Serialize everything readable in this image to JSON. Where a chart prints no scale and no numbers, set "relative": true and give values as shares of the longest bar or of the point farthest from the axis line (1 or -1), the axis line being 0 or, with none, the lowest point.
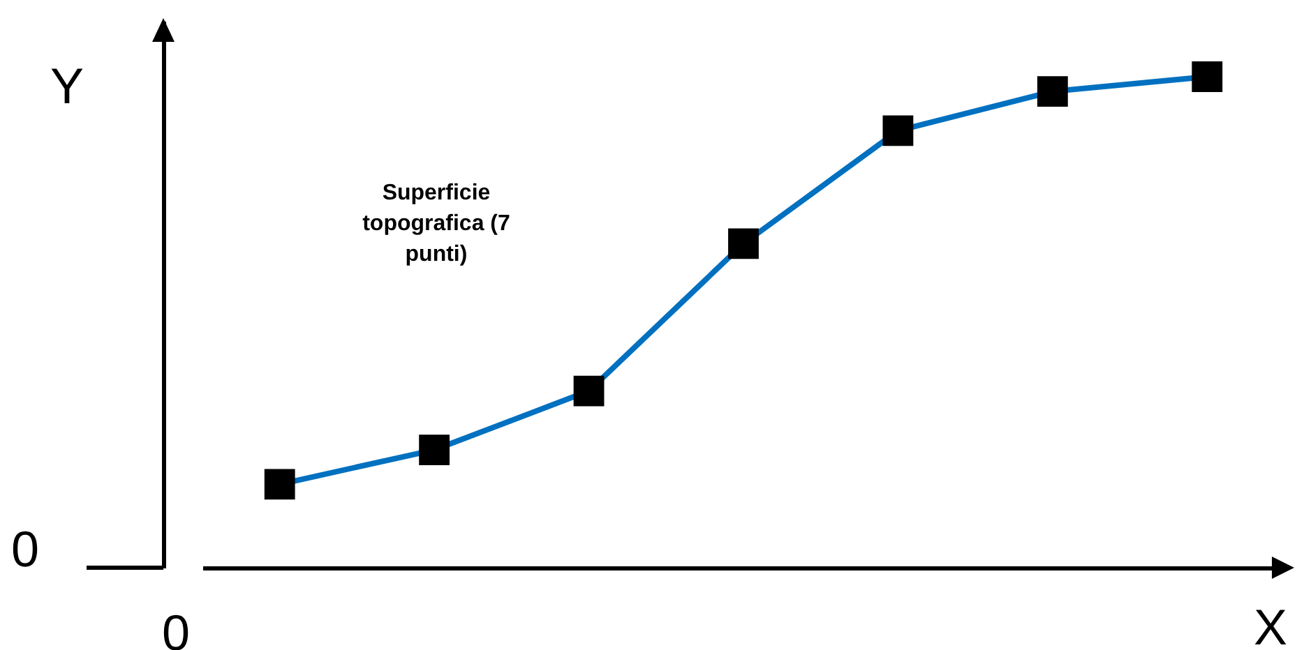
{
  "chart_data": {
    "type": "line",
    "relative": true,
    "xlabel": "X",
    "ylabel": "Y",
    "marker": "square",
    "annotations": [
      "Superficie topografica (7 punti)",
      "0",
      "0"
    ],
    "categories": [
      null,
      null,
      null,
      null,
      null,
      null,
      null
    ],
    "series": [
      {
        "color": "#0070c0",
        "values": [
          0.17,
          0.24,
          0.36,
          0.66,
          0.89,
          0.97,
          1.0
        ]
      }
    ]
  }
}
